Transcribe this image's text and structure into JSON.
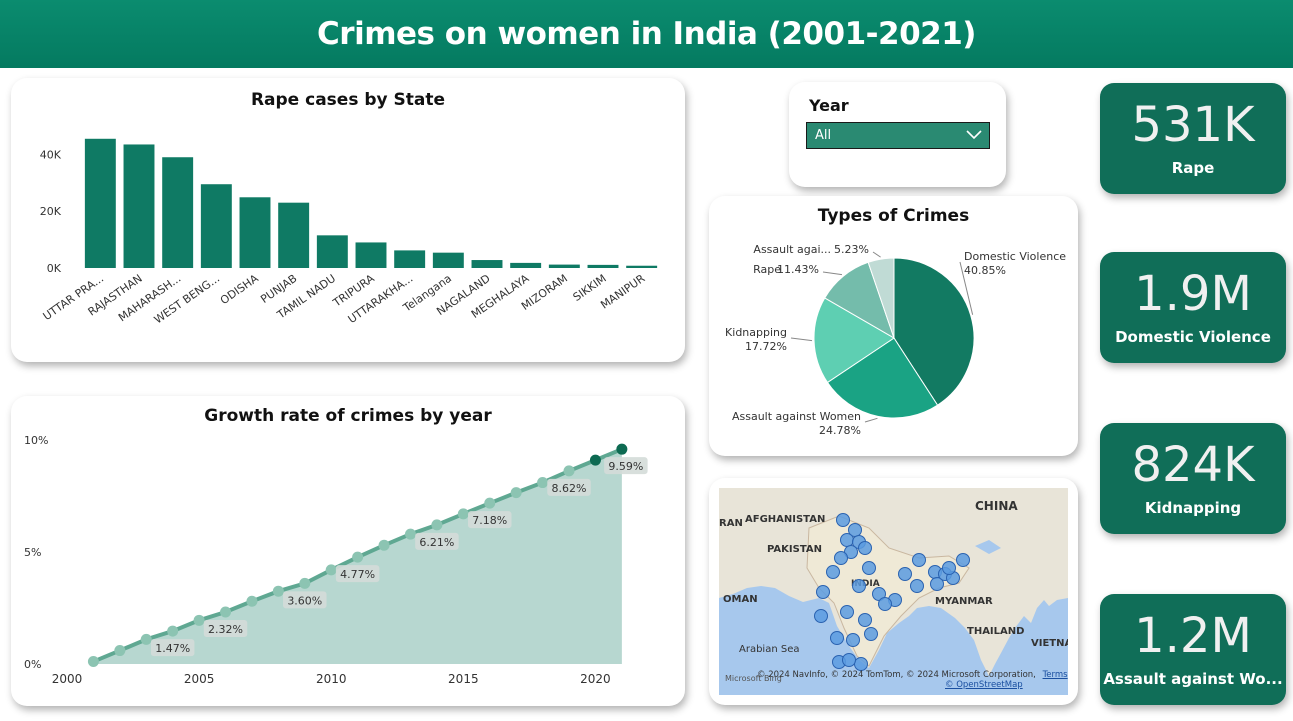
{
  "header": {
    "title": "Crimes on women in India (2001-2021)"
  },
  "bar_chart": {
    "title": "Rape cases by State",
    "color": "#0f7a64",
    "chart_data": {
      "type": "bar",
      "title": "Rape cases by State",
      "categories": [
        "UTTAR PRA...",
        "RAJASTHAN",
        "MAHARASH...",
        "WEST BENG...",
        "ODISHA",
        "PUNJAB",
        "TAMIL NADU",
        "TRIPURA",
        "UTTARAKHA...",
        "Telangana",
        "NAGALAND",
        "MEGHALAYA",
        "MIZORAM",
        "SIKKIM",
        "MANIPUR"
      ],
      "values": [
        45500,
        43500,
        39000,
        29500,
        24900,
        23000,
        11500,
        9000,
        6200,
        5400,
        2800,
        1800,
        1200,
        1100,
        800
      ],
      "ylim": [
        0,
        50000
      ],
      "yticks": [
        {
          "v": 0,
          "label": "0K"
        },
        {
          "v": 20000,
          "label": "20K"
        },
        {
          "v": 40000,
          "label": "40K"
        }
      ],
      "grid": false
    }
  },
  "line_chart": {
    "title": "Growth rate of crimes by year",
    "color": "#5fa892",
    "fill": "#b7d7d0",
    "chart_data": {
      "type": "area",
      "title": "Growth rate of crimes by year",
      "x": [
        2001,
        2002,
        2003,
        2004,
        2005,
        2006,
        2007,
        2008,
        2009,
        2010,
        2011,
        2012,
        2013,
        2014,
        2015,
        2016,
        2017,
        2018,
        2019,
        2020,
        2021
      ],
      "values": [
        0.11,
        0.6,
        1.1,
        1.47,
        1.95,
        2.32,
        2.8,
        3.25,
        3.6,
        4.2,
        4.77,
        5.3,
        5.8,
        6.21,
        6.7,
        7.18,
        7.65,
        8.1,
        8.62,
        9.1,
        9.59
      ],
      "data_labels": [
        {
          "x": 2004,
          "label": "1.47%"
        },
        {
          "x": 2006,
          "label": "2.32%"
        },
        {
          "x": 2009,
          "label": "3.60%"
        },
        {
          "x": 2011,
          "label": "4.77%"
        },
        {
          "x": 2014,
          "label": "6.21%"
        },
        {
          "x": 2016,
          "label": "7.18%"
        },
        {
          "x": 2019,
          "label": "8.62%"
        },
        {
          "x": 2021,
          "label": "9.59%"
        }
      ],
      "xlim": [
        2000,
        2021.8
      ],
      "ylim": [
        0,
        10
      ],
      "xticks": [
        2000,
        2005,
        2010,
        2015,
        2020
      ],
      "yticks": [
        {
          "v": 0,
          "label": "0%"
        },
        {
          "v": 5,
          "label": "5%"
        },
        {
          "v": 10,
          "label": "10%"
        }
      ]
    }
  },
  "slicer": {
    "label": "Year",
    "value": "All"
  },
  "pie_chart": {
    "title": "Types of Crimes",
    "chart_data": {
      "type": "pie",
      "title": "Types of Crimes",
      "slices": [
        {
          "name": "Domestic Violence",
          "value": 40.85,
          "label": "40.85%",
          "color": "#127a62"
        },
        {
          "name": "Assault against Women",
          "value": 24.78,
          "label": "24.78%",
          "color": "#1aa384"
        },
        {
          "name": "Kidnapping",
          "value": 17.72,
          "label": "17.72%",
          "color": "#5ecfb2"
        },
        {
          "name": "Rape",
          "value": 11.43,
          "label": "11.43%",
          "color": "#74bcab"
        },
        {
          "name": "Assault agai...",
          "value": 5.23,
          "label": "5.23%",
          "color": "#c0dbd5"
        }
      ]
    }
  },
  "map": {
    "labels": [
      "AFGHANISTAN",
      "PAKISTAN",
      "INDIA",
      "CHINA",
      "MYANMAR",
      "THAILAND",
      "VIETNAM",
      "OMAN",
      "Arabian Sea",
      "RAN"
    ],
    "attribution": "© 2024 NavInfo, © 2024 TomTom, © 2024 Microsoft Corporation,",
    "terms": "Terms",
    "osm": "© OpenStreetMap",
    "bing": "Microsoft Bing",
    "bubble_color": "#5b9be0"
  },
  "kpis": [
    {
      "value": "531K",
      "label": "Rape"
    },
    {
      "value": "1.9M",
      "label": "Domestic Violence"
    },
    {
      "value": "824K",
      "label": "Kidnapping"
    },
    {
      "value": "1.2M",
      "label": "Assault against Wo..."
    }
  ]
}
